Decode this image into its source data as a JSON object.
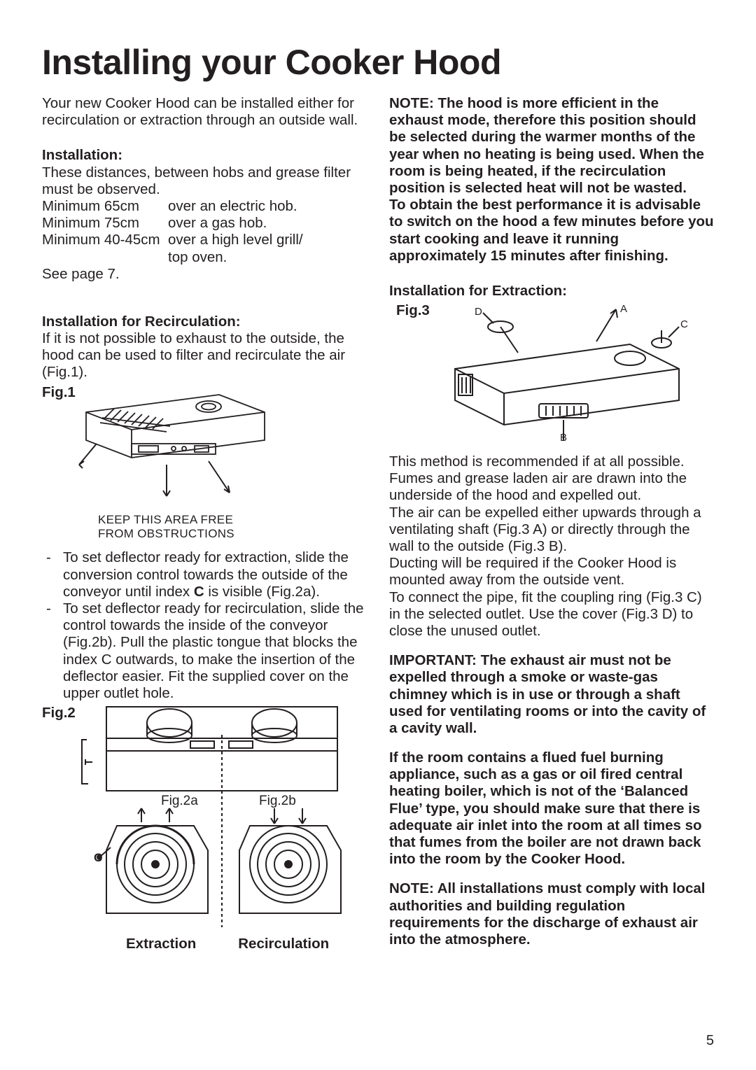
{
  "title": "Installing your Cooker Hood",
  "left": {
    "intro": "Your new Cooker Hood can be installed either for recirculation or extraction through an outside wall.",
    "install_heading": "Installation:",
    "install_intro": "These distances, between hobs and grease filter must be observed.",
    "distances": [
      {
        "left": "Minimum 65cm",
        "right": "over an electric hob."
      },
      {
        "left": "Minimum 75cm",
        "right": "over a gas hob."
      },
      {
        "left": "Minimum 40-45cm",
        "right": "over a high level grill/"
      },
      {
        "left": "",
        "right": "top oven."
      }
    ],
    "see_page": "See page 7.",
    "recirc_heading": "Installation for Recirculation:",
    "recirc_text": "If it is not possible to exhaust to the outside, the hood can be used to filter and recirculate the air (Fig.1).",
    "fig1_label": "Fig.1",
    "fig1_caption1": "KEEP THIS AREA FREE",
    "fig1_caption2": "FROM OBSTRUCTIONS",
    "bullets": [
      "To set deflector ready for extraction, slide the conversion control towards the outside of the conveyor until index <b>C</b> is visible (Fig.2a).",
      "To set deflector ready for recirculation, slide the control towards the inside of the conveyor  (Fig.2b). Pull the plastic tongue that blocks the index C outwards, to make the insertion of the deflector easier.  Fit the supplied cover on the upper outlet hole."
    ],
    "fig2_label": "Fig.2",
    "fig2a": "Fig.2a",
    "fig2b": "Fig.2b",
    "extraction": "Extraction",
    "recirculation": "Recirculation"
  },
  "right": {
    "note1": "NOTE:  The hood is more efficient in the exhaust mode, therefore this position should be selected during the warmer months of the year when no heating is being used.  When the room is being heated, if the recirculation position is selected heat will not be wasted.",
    "note1b": "To obtain the best performance it is advisable to switch on the hood a few minutes before you start cooking and leave it running approximately 15 minutes after finishing.",
    "extract_heading": "Installation for Extraction:",
    "fig3_label": "Fig.3",
    "extract_p1": "This method is recommended if at all possible.  Fumes and grease laden air are drawn into the underside of the hood and expelled out.",
    "extract_p2": "The air can be expelled either upwards through a ventilating shaft (Fig.3 A) or directly through the wall to the outside (Fig.3 B).",
    "extract_p3": "Ducting will be required if the Cooker Hood is mounted away from the outside vent.",
    "extract_p4": "To connect the pipe, fit the coupling ring (Fig.3 C) in the selected outlet.  Use the cover (Fig.3 D) to close the unused outlet.",
    "important1": "IMPORTANT:  The exhaust air must not be expelled through a smoke or waste-gas chimney which is in use or through a shaft used for ventilating rooms or into the cavity of a cavity wall.",
    "important2": "If the room contains a flued fuel burning appliance, such as a gas or oil fired central heating boiler, which is not of the ‘Balanced Flue’ type, you should make sure that there is adequate air inlet into the room at all times so that fumes from the boiler are not drawn back into the room by the Cooker Hood.",
    "note2": "NOTE:   All installations must comply with local authorities and building regulation requirements for the discharge of exhaust air into the atmosphere."
  },
  "page_number": "5",
  "colors": {
    "text": "#231f20",
    "bg": "#ffffff",
    "stroke": "#231f20"
  }
}
